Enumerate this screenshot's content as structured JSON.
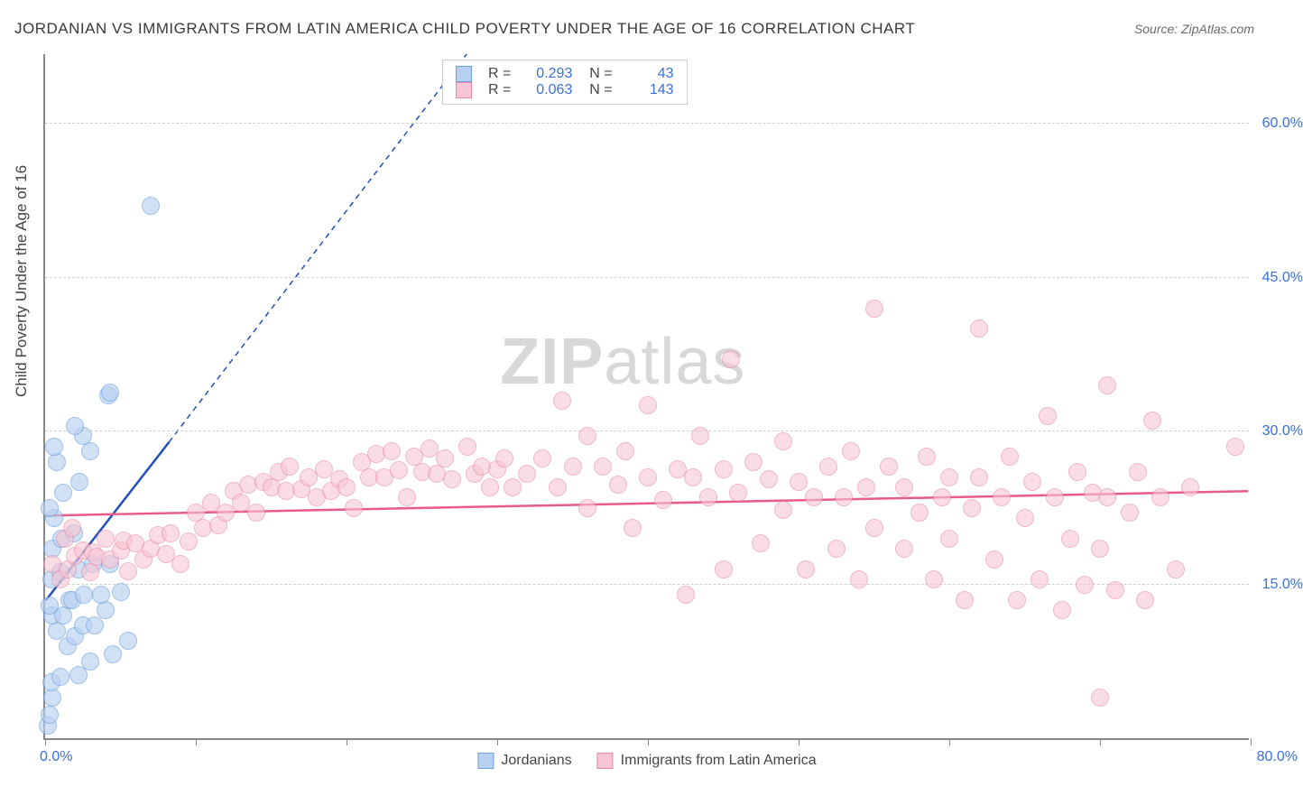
{
  "title": "JORDANIAN VS IMMIGRANTS FROM LATIN AMERICA CHILD POVERTY UNDER THE AGE OF 16 CORRELATION CHART",
  "source_label": "Source: ZipAtlas.com",
  "y_axis_label": "Child Poverty Under the Age of 16",
  "watermark": {
    "part1": "ZIP",
    "part2": "atlas"
  },
  "chart": {
    "type": "scatter",
    "xlim": [
      0,
      80
    ],
    "ylim": [
      0,
      67
    ],
    "x_ticks": [
      0,
      10,
      20,
      30,
      40,
      50,
      60,
      70,
      80
    ],
    "y_gridlines": [
      15,
      30,
      45,
      60
    ],
    "x_origin_label": "0.0%",
    "x_max_label": "80.0%",
    "y_tick_labels": [
      "15.0%",
      "30.0%",
      "45.0%",
      "60.0%"
    ],
    "background_color": "#ffffff",
    "grid_color": "#d0d0d0",
    "axis_color": "#888888",
    "point_radius": 10,
    "series": [
      {
        "name": "Jordanians",
        "fill": "#b7d0f0",
        "stroke": "#6fa0e0",
        "fill_opacity": 0.65,
        "trend": {
          "x1": 0,
          "y1": 13.5,
          "x2": 8.2,
          "y2": 29,
          "color": "#1f4fb8",
          "width": 2.5
        },
        "trend_dashed_extension": {
          "x1": 8.2,
          "y1": 29,
          "x2": 28,
          "y2": 67,
          "dash": "6 5"
        },
        "stats": {
          "R": "0.293",
          "N": "43"
        },
        "points": [
          [
            0.2,
            1.2
          ],
          [
            0.3,
            2.3
          ],
          [
            0.5,
            4
          ],
          [
            0.4,
            5.5
          ],
          [
            1,
            6
          ],
          [
            2.2,
            6.2
          ],
          [
            3,
            7.5
          ],
          [
            4.5,
            8.2
          ],
          [
            1.5,
            9
          ],
          [
            5.5,
            9.5
          ],
          [
            2,
            10
          ],
          [
            0.8,
            10.5
          ],
          [
            2.5,
            11
          ],
          [
            3.3,
            11
          ],
          [
            0.5,
            12
          ],
          [
            1.2,
            12
          ],
          [
            4,
            12.5
          ],
          [
            0.3,
            13
          ],
          [
            1.6,
            13.5
          ],
          [
            1.8,
            13.5
          ],
          [
            2.6,
            14
          ],
          [
            3.7,
            14
          ],
          [
            5,
            14.3
          ],
          [
            0.4,
            15.5
          ],
          [
            1,
            16.2
          ],
          [
            2.2,
            16.5
          ],
          [
            3.2,
            17
          ],
          [
            4.3,
            17
          ],
          [
            0.5,
            18.5
          ],
          [
            1.1,
            19.5
          ],
          [
            1.9,
            20
          ],
          [
            0.6,
            21.5
          ],
          [
            0.3,
            22.5
          ],
          [
            1.2,
            24
          ],
          [
            2.3,
            25
          ],
          [
            0.8,
            27
          ],
          [
            3,
            28
          ],
          [
            0.6,
            28.5
          ],
          [
            2.5,
            29.5
          ],
          [
            2,
            30.5
          ],
          [
            4.2,
            33.5
          ],
          [
            4.3,
            33.8
          ],
          [
            7,
            52
          ]
        ]
      },
      {
        "name": "Immigrants from Latin America",
        "fill": "#f7c5d3",
        "stroke": "#e78ba6",
        "fill_opacity": 0.6,
        "trend": {
          "x1": 0,
          "y1": 21.8,
          "x2": 80,
          "y2": 24.2,
          "color": "#e85a8a",
          "width": 2.5
        },
        "stats": {
          "R": "0.063",
          "N": "143"
        },
        "points": [
          [
            0.5,
            17
          ],
          [
            1,
            15.5
          ],
          [
            1.3,
            19.5
          ],
          [
            1.5,
            16.5
          ],
          [
            1.8,
            20.5
          ],
          [
            2,
            17.8
          ],
          [
            2.5,
            18.3
          ],
          [
            3,
            16.2
          ],
          [
            3.2,
            18.2
          ],
          [
            3.4,
            17.7
          ],
          [
            4,
            19.5
          ],
          [
            4.3,
            17.5
          ],
          [
            5,
            18.3
          ],
          [
            5.2,
            19.3
          ],
          [
            5.5,
            16.3
          ],
          [
            6,
            19
          ],
          [
            6.5,
            17.5
          ],
          [
            7,
            18.5
          ],
          [
            7.5,
            19.8
          ],
          [
            8,
            18
          ],
          [
            8.3,
            20
          ],
          [
            9,
            17
          ],
          [
            9.5,
            19.2
          ],
          [
            10,
            22
          ],
          [
            10.5,
            20.5
          ],
          [
            11,
            23
          ],
          [
            11.5,
            20.8
          ],
          [
            12,
            22
          ],
          [
            12.5,
            24.2
          ],
          [
            13,
            23
          ],
          [
            13.5,
            24.8
          ],
          [
            14,
            22
          ],
          [
            14.5,
            25
          ],
          [
            15,
            24.5
          ],
          [
            15.5,
            26
          ],
          [
            16,
            24.2
          ],
          [
            16.2,
            26.5
          ],
          [
            17,
            24.3
          ],
          [
            17.5,
            25.5
          ],
          [
            18,
            23.5
          ],
          [
            18.5,
            26.3
          ],
          [
            19,
            24.2
          ],
          [
            19.5,
            25.3
          ],
          [
            20,
            24.5
          ],
          [
            20.5,
            22.5
          ],
          [
            21,
            27
          ],
          [
            21.5,
            25.5
          ],
          [
            22,
            27.8
          ],
          [
            22.5,
            25.5
          ],
          [
            23,
            28
          ],
          [
            23.5,
            26.2
          ],
          [
            24,
            23.5
          ],
          [
            24.5,
            27.5
          ],
          [
            25,
            26
          ],
          [
            25.5,
            28.3
          ],
          [
            26,
            25.8
          ],
          [
            26.5,
            27.3
          ],
          [
            27,
            25.3
          ],
          [
            28,
            28.5
          ],
          [
            28.5,
            25.8
          ],
          [
            29,
            26.5
          ],
          [
            29.5,
            24.5
          ],
          [
            30,
            26.3
          ],
          [
            30.5,
            27.3
          ],
          [
            31,
            24.5
          ],
          [
            32,
            25.8
          ],
          [
            33,
            27.3
          ],
          [
            34,
            24.5
          ],
          [
            34.3,
            33
          ],
          [
            35,
            26.5
          ],
          [
            36,
            22.5
          ],
          [
            36,
            29.5
          ],
          [
            37,
            26.5
          ],
          [
            38,
            24.8
          ],
          [
            38.5,
            28
          ],
          [
            39,
            20.5
          ],
          [
            40,
            25.5
          ],
          [
            40,
            32.5
          ],
          [
            41,
            23.3
          ],
          [
            42,
            26.3
          ],
          [
            42.5,
            14
          ],
          [
            43,
            25.5
          ],
          [
            43.5,
            29.5
          ],
          [
            44,
            23.5
          ],
          [
            45,
            16.5
          ],
          [
            45,
            26.3
          ],
          [
            45.5,
            37
          ],
          [
            46,
            24
          ],
          [
            47,
            27
          ],
          [
            47.5,
            19
          ],
          [
            48,
            25.3
          ],
          [
            49,
            22.3
          ],
          [
            49,
            29
          ],
          [
            50,
            25
          ],
          [
            50.5,
            16.5
          ],
          [
            51,
            23.5
          ],
          [
            52,
            26.5
          ],
          [
            52.5,
            18.5
          ],
          [
            53,
            23.5
          ],
          [
            53.5,
            28
          ],
          [
            54,
            15.5
          ],
          [
            54.5,
            24.5
          ],
          [
            55,
            20.5
          ],
          [
            55,
            42
          ],
          [
            56,
            26.5
          ],
          [
            57,
            18.5
          ],
          [
            57,
            24.5
          ],
          [
            58,
            22
          ],
          [
            58.5,
            27.5
          ],
          [
            59,
            15.5
          ],
          [
            59.5,
            23.5
          ],
          [
            60,
            19.5
          ],
          [
            60,
            25.5
          ],
          [
            61,
            13.5
          ],
          [
            61.5,
            22.5
          ],
          [
            62,
            25.5
          ],
          [
            62,
            40
          ],
          [
            63,
            17.5
          ],
          [
            63.5,
            23.5
          ],
          [
            64,
            27.5
          ],
          [
            64.5,
            13.5
          ],
          [
            65,
            21.5
          ],
          [
            65.5,
            25
          ],
          [
            66,
            15.5
          ],
          [
            66.5,
            31.5
          ],
          [
            67,
            23.5
          ],
          [
            67.5,
            12.5
          ],
          [
            68,
            19.5
          ],
          [
            68.5,
            26
          ],
          [
            69,
            15
          ],
          [
            69.5,
            24
          ],
          [
            70,
            4
          ],
          [
            70,
            18.5
          ],
          [
            70.5,
            23.5
          ],
          [
            70.5,
            34.5
          ],
          [
            71,
            14.5
          ],
          [
            72,
            22
          ],
          [
            72.5,
            26
          ],
          [
            73,
            13.5
          ],
          [
            73.5,
            31
          ],
          [
            74,
            23.5
          ],
          [
            75,
            16.5
          ],
          [
            76,
            24.5
          ],
          [
            79,
            28.5
          ]
        ]
      }
    ]
  },
  "legend_bottom": [
    {
      "label": "Jordanians",
      "fill": "#b7d0f0",
      "stroke": "#6fa0e0"
    },
    {
      "label": "Immigrants from Latin America",
      "fill": "#f7c5d3",
      "stroke": "#e78ba6"
    }
  ]
}
